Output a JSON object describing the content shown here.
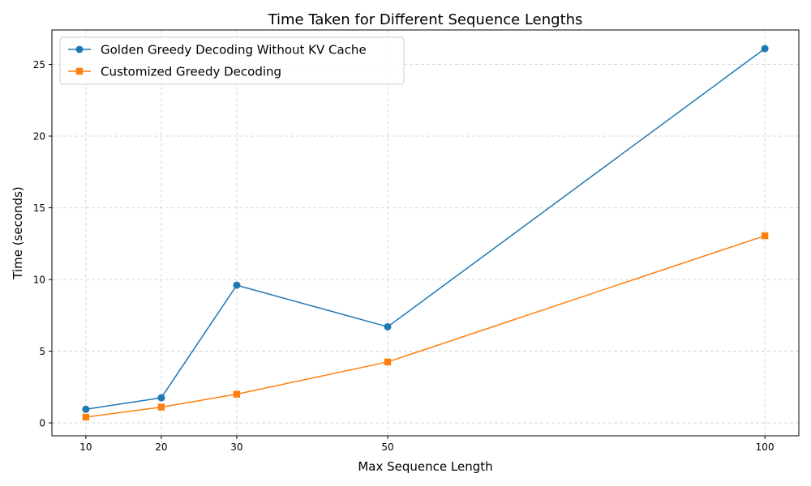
{
  "chart_data": {
    "type": "line",
    "title": "Time Taken for Different Sequence Lengths",
    "xlabel": "Max Sequence Length",
    "ylabel": "Time (seconds)",
    "x": [
      10,
      20,
      30,
      50,
      100
    ],
    "x_ticks": [
      10,
      20,
      30,
      50,
      100
    ],
    "y_ticks": [
      0,
      5,
      10,
      15,
      20,
      25
    ],
    "xlim": [
      5.5,
      104.5
    ],
    "ylim": [
      -0.9,
      27.4
    ],
    "grid": true,
    "legend_position": "top-left",
    "series": [
      {
        "name": "Golden Greedy Decoding Without KV Cache",
        "values": [
          0.95,
          1.75,
          9.6,
          6.7,
          26.1
        ],
        "color": "#1f77b4",
        "marker": "circle"
      },
      {
        "name": "Customized Greedy Decoding",
        "values": [
          0.4,
          1.1,
          2.0,
          4.25,
          13.05
        ],
        "color": "#ff7f0e",
        "marker": "square"
      }
    ]
  }
}
